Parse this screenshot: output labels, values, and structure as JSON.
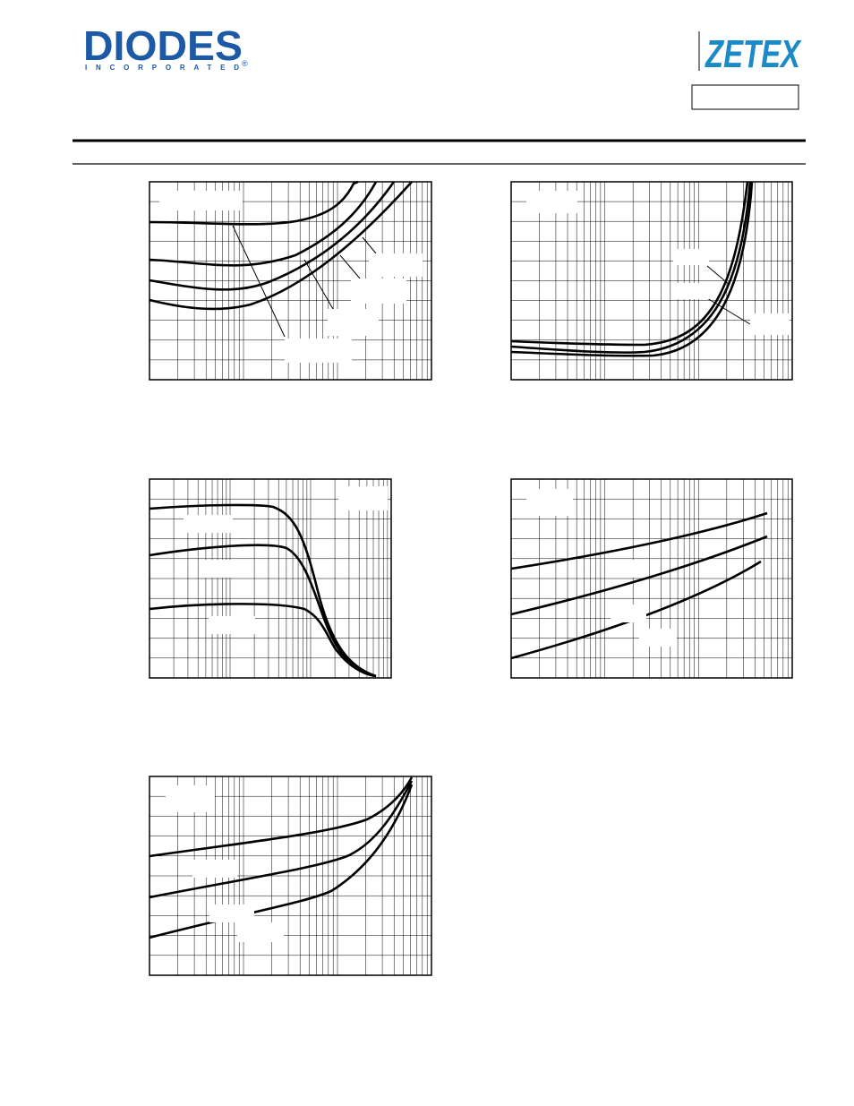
{
  "header": {
    "logo_left": "DIODES",
    "logo_left_sub": "INCORPORATED",
    "logo_left_mark": "®",
    "logo_right": "ZETEX"
  }
}
